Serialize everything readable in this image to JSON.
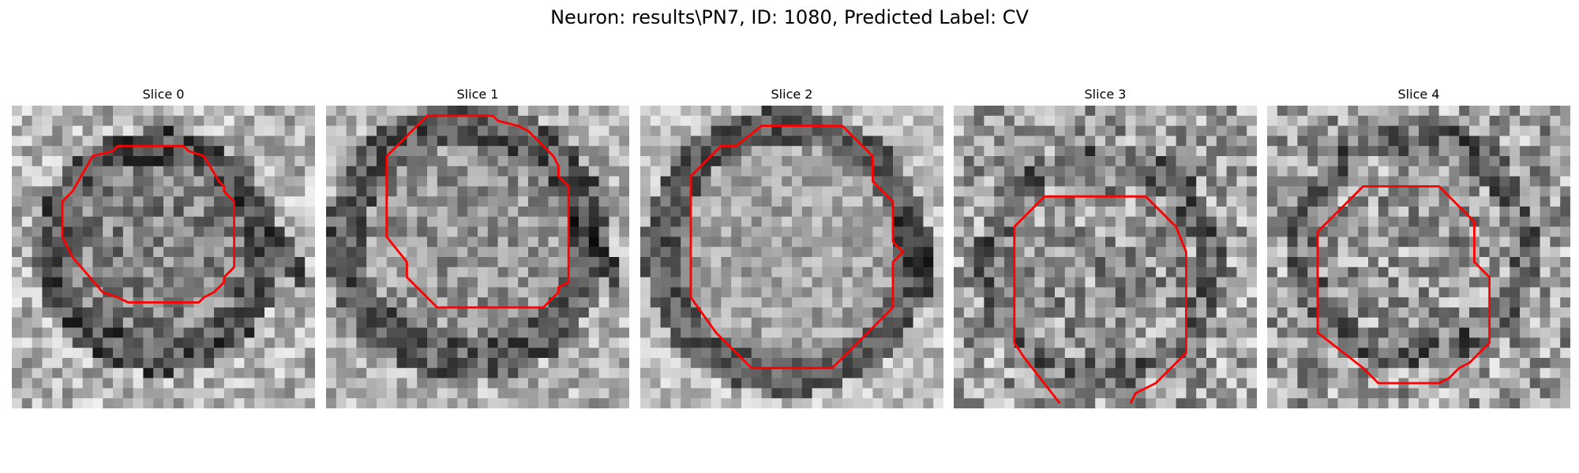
{
  "figure": {
    "title": "Neuron: results\\PN7, ID: 1080, Predicted Label: CV"
  },
  "panels": [
    {
      "title": "Slice 0"
    },
    {
      "title": "Slice 1"
    },
    {
      "title": "Slice 2"
    },
    {
      "title": "Slice 3"
    },
    {
      "title": "Slice 4"
    }
  ],
  "colors": {
    "contour": "#ff0000",
    "background": "#ffffff"
  },
  "image": {
    "colormap": "grayscale"
  }
}
